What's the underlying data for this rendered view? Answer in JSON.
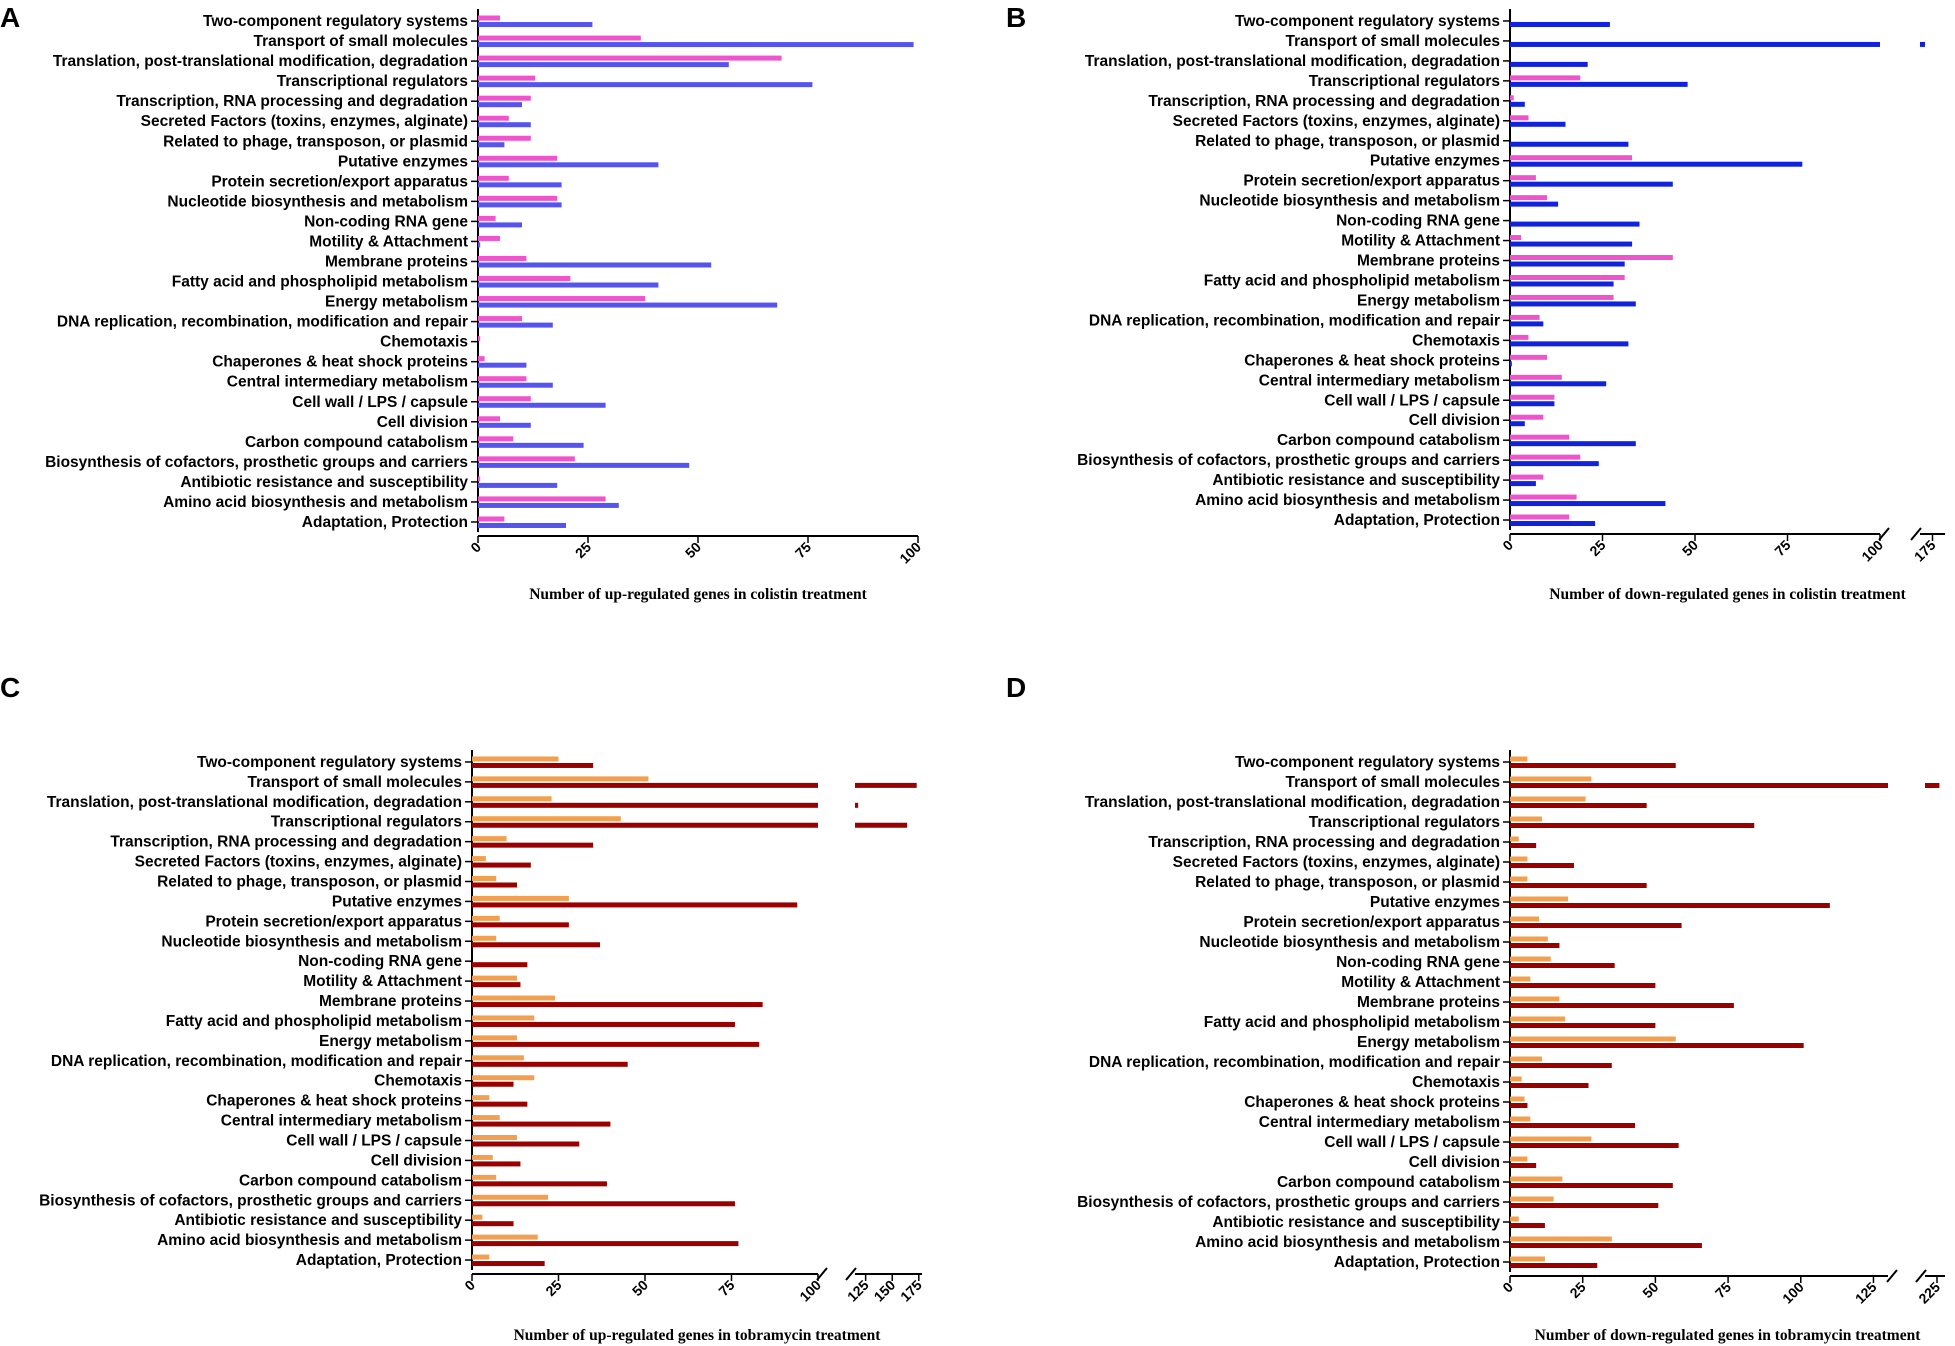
{
  "categories": [
    "Two-component regulatory systems",
    "Transport of small molecules",
    "Translation, post-translational modification, degradation",
    "Transcriptional regulators",
    "Transcription, RNA processing and degradation",
    "Secreted Factors (toxins, enzymes, alginate)",
    "Related to phage, transposon, or plasmid",
    "Putative enzymes",
    "Protein secretion/export apparatus",
    "Nucleotide biosynthesis and metabolism",
    "Non-coding RNA gene",
    "Motility & Attachment",
    "Membrane proteins",
    "Fatty acid and phospholipid metabolism",
    "Energy metabolism",
    "DNA replication, recombination, modification and repair",
    "Chemotaxis",
    "Chaperones & heat shock proteins",
    "Central intermediary metabolism",
    "Cell wall / LPS / capsule",
    "Cell division",
    "Carbon compound catabolism",
    "Biosynthesis of cofactors, prosthetic groups and carriers",
    "Antibiotic resistance and susceptibility",
    "Amino acid biosynthesis and metabolism",
    "Adaptation, Protection"
  ],
  "chart_data": [
    {
      "panel": "A",
      "type": "bar",
      "orientation": "horizontal",
      "xlabel": "Number of up-regulated genes in colistin treatment",
      "ticks": [
        0,
        25,
        50,
        75,
        100
      ],
      "xlim": [
        0,
        100
      ],
      "series": [
        {
          "color": "#ee55cc",
          "values": [
            5,
            37,
            69,
            13,
            12,
            7,
            12,
            18,
            7,
            18,
            4,
            5,
            11,
            21,
            38,
            10,
            0.5,
            1.5,
            11,
            12,
            5,
            8,
            22,
            0.5,
            29,
            6
          ]
        },
        {
          "color": "#5555ee",
          "values": [
            26,
            99,
            57,
            76,
            10,
            12,
            6,
            41,
            19,
            19,
            10,
            0.5,
            53,
            41,
            68,
            17,
            0,
            11,
            17,
            29,
            12,
            24,
            48,
            18,
            32,
            20
          ]
        }
      ]
    },
    {
      "panel": "B",
      "type": "bar",
      "orientation": "horizontal",
      "xlabel": "Number of down-regulated genes in colistin treatment",
      "ticks": [
        0,
        25,
        50,
        75,
        100,
        175
      ],
      "xlim": [
        0,
        100
      ],
      "break": {
        "after": 100,
        "resume": 170,
        "end": 180
      },
      "series": [
        {
          "color": "#ee55cc",
          "values": [
            0,
            0,
            0,
            19,
            1,
            5,
            0,
            33,
            7,
            10,
            0,
            3,
            44,
            31,
            28,
            8,
            5,
            10,
            14,
            12,
            9,
            16,
            19,
            9,
            18,
            16
          ]
        },
        {
          "color": "#1122dd",
          "values": [
            27,
            172,
            21,
            48,
            4,
            15,
            32,
            79,
            44,
            13,
            35,
            33,
            31,
            28,
            34,
            9,
            32,
            0.5,
            26,
            12,
            4,
            34,
            24,
            7,
            42,
            23
          ]
        }
      ]
    },
    {
      "panel": "C",
      "type": "bar",
      "orientation": "horizontal",
      "xlabel": "Number of up-regulated genes in tobramycin treatment",
      "ticks": [
        0,
        25,
        50,
        75,
        100,
        125,
        150,
        175
      ],
      "xlim": [
        0,
        100
      ],
      "break": {
        "after": 100,
        "resume": 115,
        "end": 178
      },
      "series": [
        {
          "color": "#f0a050",
          "values": [
            25,
            51,
            23,
            43,
            10,
            4,
            7,
            28,
            8,
            7,
            0,
            13,
            24,
            18,
            13,
            15,
            18,
            5,
            8,
            13,
            6,
            7,
            22,
            3,
            19,
            5
          ]
        },
        {
          "color": "#990000",
          "values": [
            35,
            173,
            118,
            164,
            35,
            17,
            13,
            94,
            28,
            37,
            16,
            14,
            84,
            76,
            83,
            45,
            12,
            16,
            40,
            31,
            14,
            39,
            76,
            12,
            77,
            21
          ]
        }
      ]
    },
    {
      "panel": "D",
      "type": "bar",
      "orientation": "horizontal",
      "xlabel": "Number of down-regulated genes in tobramycin treatment",
      "ticks": [
        0,
        25,
        50,
        75,
        100,
        125,
        225
      ],
      "xlim": [
        0,
        130
      ],
      "break": {
        "after": 130,
        "resume": 210,
        "end": 235
      },
      "series": [
        {
          "color": "#f0a050",
          "values": [
            6,
            28,
            26,
            11,
            3,
            6,
            6,
            20,
            10,
            13,
            14,
            7,
            17,
            19,
            57,
            11,
            4,
            5,
            7,
            28,
            6,
            18,
            15,
            3,
            35,
            12
          ]
        },
        {
          "color": "#990000",
          "values": [
            57,
            228,
            47,
            84,
            9,
            22,
            47,
            110,
            59,
            17,
            36,
            50,
            77,
            50,
            101,
            35,
            27,
            6,
            43,
            58,
            9,
            56,
            51,
            12,
            66,
            30
          ]
        }
      ]
    }
  ]
}
